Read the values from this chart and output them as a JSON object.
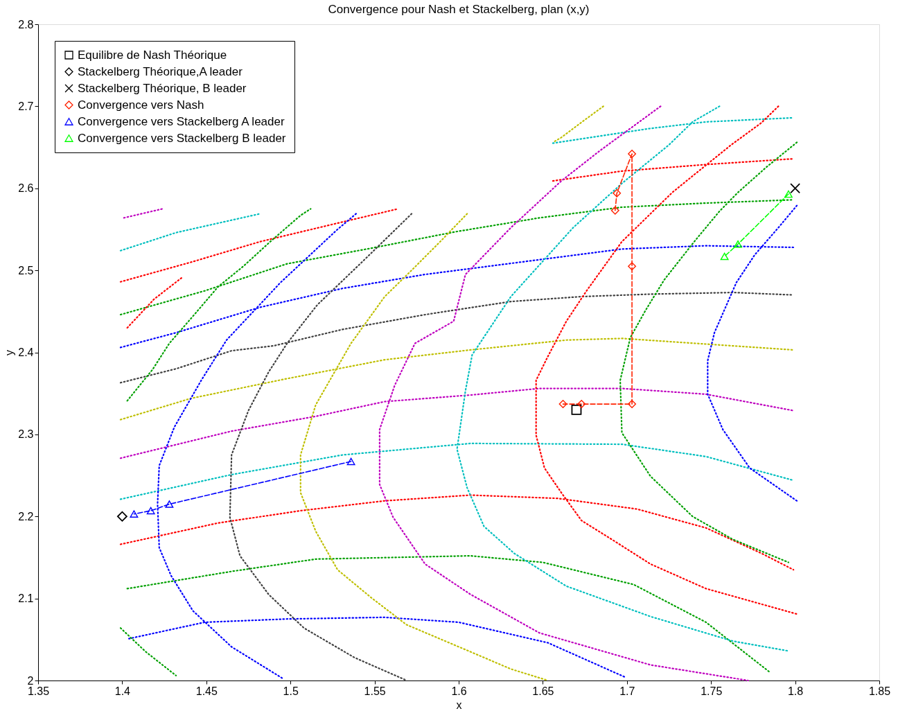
{
  "chart_data": {
    "type": "line",
    "title": "Convergence pour Nash et Stackelberg, plan (x,y)",
    "xlabel": "x",
    "ylabel": "y",
    "xlim": [
      1.35,
      1.85
    ],
    "ylim": [
      2,
      2.8
    ],
    "xticks": [
      1.35,
      1.4,
      1.45,
      1.5,
      1.55,
      1.6,
      1.65,
      1.7,
      1.75,
      1.8,
      1.85
    ],
    "yticks": [
      2,
      2.1,
      2.2,
      2.3,
      2.4,
      2.5,
      2.6,
      2.7,
      2.8
    ],
    "grid": false,
    "legend": "top left",
    "series": [
      {
        "type": "line",
        "color": "#0000ff",
        "line_style": "dotted",
        "marker": "none",
        "x": [
          1.404,
          1.449,
          1.498,
          1.556,
          1.6,
          1.653,
          1.699
        ],
        "values": [
          2.051,
          2.071,
          2.075,
          2.077,
          2.071,
          2.046,
          2.004
        ]
      },
      {
        "type": "line",
        "color": "#00a000",
        "line_style": "dotted",
        "marker": "none",
        "x": [
          1.403,
          1.465,
          1.515,
          1.607,
          1.65,
          1.704,
          1.747,
          1.785
        ],
        "values": [
          2.112,
          2.133,
          2.148,
          2.152,
          2.144,
          2.117,
          2.071,
          2.01
        ]
      },
      {
        "type": "line",
        "color": "#ff0000",
        "line_style": "dotted",
        "marker": "none",
        "x": [
          1.399,
          1.457,
          1.506,
          1.556,
          1.607,
          1.659,
          1.706,
          1.747,
          1.78,
          1.799
        ],
        "values": [
          2.166,
          2.192,
          2.207,
          2.219,
          2.226,
          2.222,
          2.209,
          2.186,
          2.155,
          2.135
        ]
      },
      {
        "type": "line",
        "color": "#00bfbf",
        "line_style": "dotted",
        "marker": "none",
        "x": [
          1.399,
          1.465,
          1.531,
          1.607,
          1.697,
          1.747,
          1.772,
          1.799
        ],
        "values": [
          2.221,
          2.251,
          2.275,
          2.289,
          2.288,
          2.273,
          2.259,
          2.244
        ]
      },
      {
        "type": "line",
        "color": "#bf00bf",
        "line_style": "dotted",
        "marker": "none",
        "x": [
          1.399,
          1.465,
          1.515,
          1.556,
          1.607,
          1.648,
          1.697,
          1.747,
          1.799
        ],
        "values": [
          2.271,
          2.304,
          2.322,
          2.34,
          2.348,
          2.356,
          2.356,
          2.349,
          2.329
        ]
      },
      {
        "type": "line",
        "color": "#bfbf00",
        "line_style": "dotted",
        "marker": "none",
        "x": [
          1.399,
          1.441,
          1.498,
          1.556,
          1.607,
          1.664,
          1.697,
          1.799
        ],
        "values": [
          2.318,
          2.344,
          2.368,
          2.391,
          2.403,
          2.415,
          2.417,
          2.403
        ]
      },
      {
        "type": "line",
        "color": "#404040",
        "line_style": "dotted",
        "marker": "none",
        "x": [
          1.399,
          1.432,
          1.465,
          1.49,
          1.531,
          1.58,
          1.631,
          1.673,
          1.714,
          1.763,
          1.799
        ],
        "values": [
          2.363,
          2.38,
          2.402,
          2.408,
          2.428,
          2.446,
          2.462,
          2.468,
          2.471,
          2.473,
          2.47
        ]
      },
      {
        "type": "line",
        "color": "#0000ff",
        "line_style": "dotted",
        "marker": "none",
        "x": [
          1.399,
          1.432,
          1.482,
          1.531,
          1.58,
          1.648,
          1.697,
          1.747,
          1.799
        ],
        "values": [
          2.406,
          2.424,
          2.455,
          2.478,
          2.495,
          2.513,
          2.526,
          2.53,
          2.528
        ]
      },
      {
        "type": "line",
        "color": "#00a000",
        "line_style": "dotted",
        "marker": "none",
        "x": [
          1.399,
          1.449,
          1.498,
          1.548,
          1.598,
          1.648,
          1.697,
          1.747,
          1.799
        ],
        "values": [
          2.446,
          2.475,
          2.508,
          2.527,
          2.547,
          2.564,
          2.577,
          2.582,
          2.586
        ]
      },
      {
        "type": "line",
        "color": "#ff0000",
        "line_style": "dotted",
        "marker": "none",
        "x": [
          1.399,
          1.441,
          1.482,
          1.531,
          1.564
        ],
        "values": [
          2.486,
          2.51,
          2.535,
          2.559,
          2.575
        ]
      },
      {
        "type": "line",
        "color": "#ff0000",
        "line_style": "dotted",
        "marker": "none",
        "x": [
          1.656,
          1.697,
          1.747,
          1.799
        ],
        "values": [
          2.609,
          2.621,
          2.629,
          2.636
        ]
      },
      {
        "type": "line",
        "color": "#00bfbf",
        "line_style": "dotted",
        "marker": "none",
        "x": [
          1.399,
          1.432,
          1.482
        ],
        "values": [
          2.524,
          2.546,
          2.569
        ]
      },
      {
        "type": "line",
        "color": "#00bfbf",
        "line_style": "dotted",
        "marker": "none",
        "x": [
          1.656,
          1.714,
          1.747,
          1.799
        ],
        "values": [
          2.655,
          2.673,
          2.681,
          2.686
        ]
      },
      {
        "type": "line",
        "color": "#bf00bf",
        "line_style": "dotted",
        "marker": "none",
        "x": [
          1.401,
          1.424
        ],
        "values": [
          2.564,
          2.575
        ]
      },
      {
        "type": "line",
        "color": "#0000ff",
        "line_style": "dotted",
        "marker": "none",
        "x": [
          1.539,
          1.528,
          1.494,
          1.462,
          1.447,
          1.431,
          1.422,
          1.421,
          1.422,
          1.429,
          1.442,
          1.465,
          1.495
        ],
        "values": [
          2.569,
          2.55,
          2.485,
          2.415,
          2.366,
          2.309,
          2.262,
          2.215,
          2.162,
          2.128,
          2.085,
          2.041,
          2.003
        ]
      },
      {
        "type": "line",
        "color": "#404040",
        "line_style": "dotted",
        "marker": "none",
        "x": [
          1.572,
          1.545,
          1.516,
          1.498,
          1.487,
          1.475,
          1.465,
          1.464,
          1.47,
          1.487,
          1.508,
          1.538,
          1.568
        ],
        "values": [
          2.569,
          2.515,
          2.458,
          2.411,
          2.376,
          2.329,
          2.275,
          2.199,
          2.152,
          2.105,
          2.064,
          2.028,
          2.001
        ]
      },
      {
        "type": "line",
        "color": "#bfbf00",
        "line_style": "dotted",
        "marker": "none",
        "x": [
          1.686,
          1.674,
          1.661,
          1.656
        ],
        "values": [
          2.7,
          2.682,
          2.662,
          2.656
        ]
      },
      {
        "type": "line",
        "color": "#bfbf00",
        "line_style": "dotted",
        "marker": "none",
        "x": [
          1.605,
          1.589,
          1.571,
          1.556,
          1.536,
          1.515,
          1.506,
          1.506,
          1.515,
          1.528,
          1.548,
          1.569,
          1.607,
          1.631,
          1.653
        ],
        "values": [
          2.569,
          2.535,
          2.498,
          2.468,
          2.411,
          2.336,
          2.275,
          2.229,
          2.182,
          2.135,
          2.101,
          2.068,
          2.035,
          2.014,
          2.0
        ]
      },
      {
        "type": "line",
        "color": "#bf00bf",
        "line_style": "dotted",
        "marker": "none",
        "x": [
          1.72,
          1.702,
          1.684,
          1.661,
          1.631,
          1.604,
          1.597,
          1.574,
          1.562,
          1.553,
          1.553,
          1.561,
          1.58,
          1.607,
          1.648,
          1.714,
          1.772
        ],
        "values": [
          2.7,
          2.673,
          2.646,
          2.609,
          2.552,
          2.495,
          2.438,
          2.411,
          2.36,
          2.306,
          2.239,
          2.199,
          2.142,
          2.105,
          2.058,
          2.019,
          2.0
        ]
      },
      {
        "type": "line",
        "color": "#00bfbf",
        "line_style": "dotted",
        "marker": "none",
        "x": [
          1.755,
          1.739,
          1.725,
          1.697,
          1.668,
          1.631,
          1.608,
          1.604,
          1.599,
          1.605,
          1.615,
          1.633,
          1.664,
          1.714,
          1.763,
          1.796
        ],
        "values": [
          2.7,
          2.681,
          2.653,
          2.606,
          2.552,
          2.468,
          2.397,
          2.353,
          2.282,
          2.235,
          2.188,
          2.155,
          2.115,
          2.078,
          2.048,
          2.036
        ]
      },
      {
        "type": "line",
        "color": "#ff0000",
        "line_style": "dotted",
        "marker": "none",
        "x": [
          1.79,
          1.78,
          1.762,
          1.739,
          1.727,
          1.714,
          1.697,
          1.676,
          1.664,
          1.653,
          1.646,
          1.646,
          1.651,
          1.661,
          1.673,
          1.691,
          1.714,
          1.747,
          1.801
        ],
        "values": [
          2.7,
          2.68,
          2.653,
          2.615,
          2.595,
          2.569,
          2.535,
          2.475,
          2.438,
          2.395,
          2.366,
          2.299,
          2.259,
          2.229,
          2.195,
          2.172,
          2.142,
          2.112,
          2.081
        ]
      },
      {
        "type": "line",
        "color": "#00a000",
        "line_style": "dotted",
        "marker": "none",
        "x": [
          1.801,
          1.783,
          1.766,
          1.755,
          1.74,
          1.722,
          1.711,
          1.702,
          1.696,
          1.697,
          1.714,
          1.739,
          1.763,
          1.796
        ],
        "values": [
          2.656,
          2.626,
          2.595,
          2.572,
          2.535,
          2.488,
          2.451,
          2.418,
          2.366,
          2.302,
          2.249,
          2.2,
          2.172,
          2.144
        ]
      },
      {
        "type": "line",
        "color": "#0000ff",
        "line_style": "dotted",
        "marker": "none",
        "x": [
          1.801,
          1.79,
          1.776,
          1.765,
          1.752,
          1.748,
          1.748,
          1.757,
          1.773,
          1.801
        ],
        "values": [
          2.579,
          2.552,
          2.519,
          2.485,
          2.424,
          2.39,
          2.349,
          2.306,
          2.259,
          2.219
        ]
      },
      {
        "type": "line",
        "color": "#00a000",
        "line_style": "dotted",
        "marker": "none",
        "x": [
          1.403,
          1.418,
          1.428,
          1.442,
          1.457,
          1.472,
          1.488,
          1.506,
          1.512
        ],
        "values": [
          2.341,
          2.379,
          2.411,
          2.444,
          2.48,
          2.505,
          2.535,
          2.567,
          2.575
        ]
      },
      {
        "type": "line",
        "color": "#00a000",
        "line_style": "dotted",
        "marker": "none",
        "x": [
          1.399,
          1.414,
          1.432
        ],
        "values": [
          2.064,
          2.035,
          2.006
        ]
      },
      {
        "type": "line",
        "color": "#ff0000",
        "line_style": "dotted",
        "marker": "none",
        "x": [
          1.403,
          1.419,
          1.436
        ],
        "values": [
          2.43,
          2.465,
          2.492
        ]
      },
      {
        "type": "scatter",
        "name": "Equilibre de Nash Théorique",
        "color": "#000000",
        "marker": "square",
        "x": [
          1.67
        ],
        "values": [
          2.33
        ]
      },
      {
        "type": "scatter",
        "name": "Stackelberg Théorique,A leader",
        "color": "#000000",
        "marker": "diamond",
        "x": [
          1.4
        ],
        "values": [
          2.2
        ]
      },
      {
        "type": "scatter",
        "name": "Stackelberg Théorique, B leader",
        "color": "#000000",
        "marker": "cross",
        "x": [
          1.8
        ],
        "values": [
          2.6
        ]
      },
      {
        "type": "line",
        "name": "Convergence vers Nash",
        "color": "#ff2200",
        "line_style": "dashed",
        "marker": "diamond",
        "x": [
          1.693,
          1.694,
          1.703,
          1.703,
          1.703,
          1.673,
          1.662
        ],
        "values": [
          2.573,
          2.594,
          2.642,
          2.505,
          2.337,
          2.337,
          2.337
        ]
      },
      {
        "type": "line",
        "name": "Convergence vers Stackelberg A leader",
        "color": "#0000ff",
        "line_style": "dashed",
        "marker": "triangle",
        "x": [
          1.536,
          1.428,
          1.417,
          1.407
        ],
        "values": [
          2.267,
          2.215,
          2.207,
          2.203
        ]
      },
      {
        "type": "line",
        "name": "Convergence vers Stackelberg B leader",
        "color": "#00ff00",
        "line_style": "dashed",
        "marker": "triangle",
        "x": [
          1.796,
          1.766,
          1.758
        ],
        "values": [
          2.593,
          2.532,
          2.517
        ]
      }
    ]
  }
}
